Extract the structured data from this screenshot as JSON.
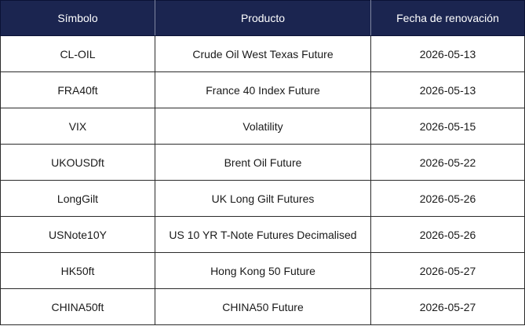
{
  "table": {
    "headers": [
      "Símbolo",
      "Producto",
      "Fecha de renovación"
    ],
    "rows": [
      [
        "CL-OIL",
        "Crude Oil West Texas Future",
        "2026-05-13"
      ],
      [
        "FRA40ft",
        "France 40 Index Future",
        "2026-05-13"
      ],
      [
        "VIX",
        "Volatility",
        "2026-05-15"
      ],
      [
        "UKOUSDft",
        "Brent Oil Future",
        "2026-05-22"
      ],
      [
        "LongGilt",
        "UK Long Gilt Futures",
        "2026-05-26"
      ],
      [
        "USNote10Y",
        "US 10 YR T-Note Futures Decimalised",
        "2026-05-26"
      ],
      [
        "HK50ft",
        "Hong Kong 50 Future",
        "2026-05-27"
      ],
      [
        "CHINA50ft",
        "CHINA50 Future",
        "2026-05-27"
      ]
    ]
  },
  "colors": {
    "header_background": "#1b2550",
    "header_text": "#ffffff",
    "cell_text": "#1a1a1a",
    "border": "#2b2b2b"
  }
}
